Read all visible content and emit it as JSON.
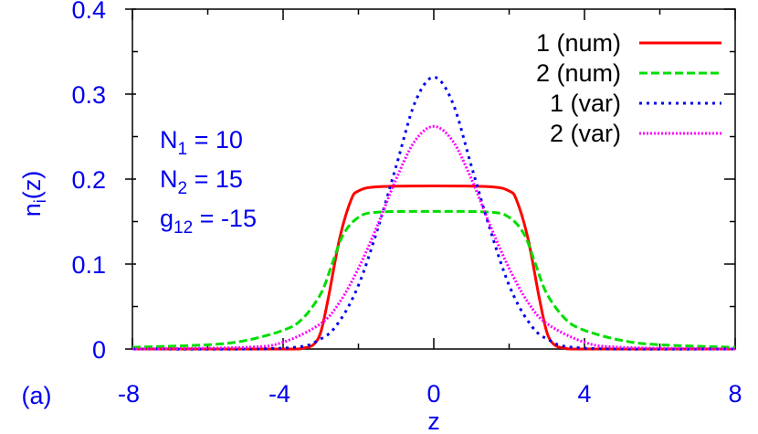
{
  "chart_data": {
    "type": "line",
    "title": "",
    "panel_label": "(a)",
    "xlabel": "z",
    "ylabel": "n_i(z)",
    "xlim": [
      -8,
      8
    ],
    "ylim": [
      0,
      0.4
    ],
    "xticks": [
      "-8",
      "-4",
      "0",
      "4",
      "8"
    ],
    "yticks": [
      "0",
      "0.1",
      "0.2",
      "0.3",
      "0.4"
    ],
    "grid": false,
    "legend_position": "upper right",
    "annotations": {
      "n1": {
        "base": "N",
        "sub": "1",
        "rest": " = 10"
      },
      "n2": {
        "base": "N",
        "sub": "2",
        "rest": " = 15"
      },
      "g12": {
        "base": "g",
        "sub": "12",
        "rest": " = -15"
      }
    },
    "series": [
      {
        "name": "1 (num)",
        "color": "#ff0000",
        "style": "solid",
        "x": [
          -8,
          -4,
          -3.5,
          -3.2,
          -3.0,
          -2.8,
          -2.5,
          -2.2,
          -2.0,
          -1.5,
          0,
          1.5,
          2.0,
          2.2,
          2.5,
          2.8,
          3.0,
          3.2,
          3.5,
          4,
          8
        ],
        "y": [
          0,
          0,
          0.001,
          0.005,
          0.02,
          0.06,
          0.13,
          0.175,
          0.186,
          0.191,
          0.192,
          0.191,
          0.186,
          0.175,
          0.13,
          0.06,
          0.02,
          0.005,
          0.001,
          0,
          0
        ]
      },
      {
        "name": "2 (num)",
        "color": "#00dd00",
        "style": "dashed",
        "x": [
          -8,
          -6,
          -5,
          -4,
          -3.5,
          -3.0,
          -2.7,
          -2.4,
          -2.0,
          -1.5,
          0,
          1.5,
          2.0,
          2.4,
          2.7,
          3.0,
          3.5,
          4,
          5,
          6,
          8
        ],
        "y": [
          0.002,
          0.005,
          0.01,
          0.022,
          0.035,
          0.065,
          0.1,
          0.135,
          0.155,
          0.161,
          0.162,
          0.161,
          0.155,
          0.135,
          0.1,
          0.065,
          0.035,
          0.022,
          0.01,
          0.005,
          0.002
        ]
      },
      {
        "name": "1 (var)",
        "color": "#0000ee",
        "style": "dotted",
        "x": [
          -8,
          -4,
          -3,
          -2.5,
          -2,
          -1.5,
          -1,
          -0.5,
          0,
          0.5,
          1,
          1.5,
          2,
          2.5,
          3,
          4,
          8
        ],
        "y": [
          0,
          0.001,
          0.012,
          0.033,
          0.075,
          0.14,
          0.215,
          0.29,
          0.32,
          0.29,
          0.215,
          0.14,
          0.075,
          0.033,
          0.012,
          0.001,
          0
        ]
      },
      {
        "name": "2 (var)",
        "color": "#ff00ff",
        "style": "dotted",
        "x": [
          -8,
          -5,
          -4,
          -3,
          -2.5,
          -2,
          -1.5,
          -1,
          -0.5,
          0,
          0.5,
          1,
          1.5,
          2,
          2.5,
          3,
          4,
          5,
          8
        ],
        "y": [
          0,
          0.002,
          0.008,
          0.03,
          0.055,
          0.095,
          0.145,
          0.2,
          0.245,
          0.262,
          0.245,
          0.2,
          0.145,
          0.095,
          0.055,
          0.03,
          0.008,
          0.002,
          0
        ]
      }
    ]
  }
}
